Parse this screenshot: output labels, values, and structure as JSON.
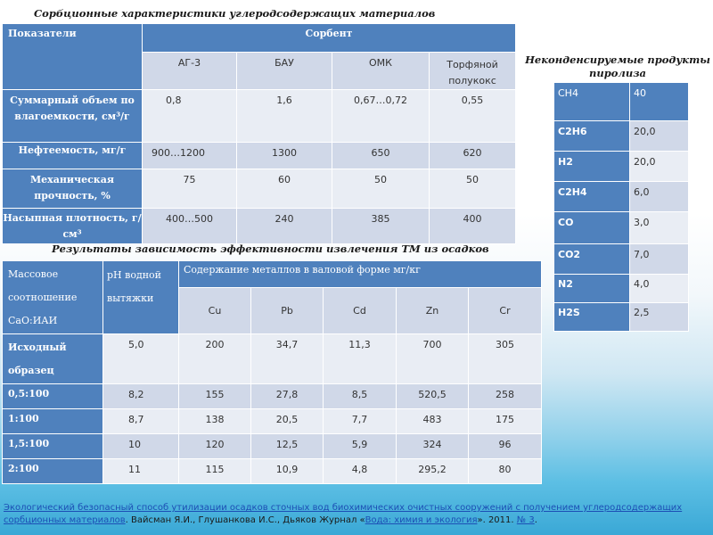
{
  "table1": {
    "title": "Сорбционные характеристики углеродсодержащих материалов",
    "header_param": "Показатели",
    "header_sorbent": "Сорбент",
    "sorbents": [
      "АГ-3",
      "БАУ",
      "ОМК",
      "Торфяной полукокс"
    ],
    "rows": [
      {
        "label": "Суммарный объем по влагоемкости, см³/г",
        "values": [
          "0,8",
          "1,6",
          "0,67…0,72",
          "0,55"
        ]
      },
      {
        "label": "Нефтеемость, мг/г",
        "values": [
          "900…1200",
          "1300",
          "650",
          "620"
        ]
      },
      {
        "label": "Механическая прочность, %",
        "values": [
          "75",
          "60",
          "50",
          "50"
        ]
      },
      {
        "label": "Насыпная плотность, г/см³",
        "values": [
          "400…500",
          "240",
          "385",
          "400"
        ]
      }
    ]
  },
  "table2": {
    "title": "Результаты зависимость эффективности извлечения ТМ из осадков",
    "header_ratio": "Массовое соотношение СаО:ИАИ",
    "header_ph": "рН водной вытяжки",
    "header_metals": "Содержание металлов в валовой форме мг/кг",
    "metals": [
      "Cu",
      "Pb",
      "Cd",
      "Zn",
      "Cr"
    ],
    "rows": [
      {
        "label": "Исходный образец",
        "ph": "5,0",
        "values": [
          "200",
          "34,7",
          "11,3",
          "700",
          "305"
        ]
      },
      {
        "label": "0,5:100",
        "ph": "8,2",
        "values": [
          "155",
          "27,8",
          "8,5",
          "520,5",
          "258"
        ]
      },
      {
        "label": "1:100",
        "ph": "8,7",
        "values": [
          "138",
          "20,5",
          "7,7",
          "483",
          "175"
        ]
      },
      {
        "label": "1,5:100",
        "ph": "10",
        "values": [
          "120",
          "12,5",
          "5,9",
          "324",
          "96"
        ]
      },
      {
        "label": "2:100",
        "ph": "11",
        "values": [
          "115",
          "10,9",
          "4,8",
          "295,2",
          "80"
        ]
      }
    ]
  },
  "table3": {
    "title": "Неконденсируемые продукты пиролиза",
    "rows": [
      {
        "gas": "CH4",
        "value": "40"
      },
      {
        "gas": "C2H6",
        "value": "20,0"
      },
      {
        "gas": "H2",
        "value": "20,0"
      },
      {
        "gas": "C2H4",
        "value": "6,0"
      },
      {
        "gas": "CO",
        "value": "3,0"
      },
      {
        "gas": "CO2",
        "value": "7,0"
      },
      {
        "gas": "N2",
        "value": "4,0"
      },
      {
        "gas": "H2S",
        "value": "2,5"
      }
    ]
  },
  "footer": {
    "link_text": "Экологический безопасный способ утилизации осадков сточных вод биохимических очистных сооружений с получением углеродсодержащих сорбционных материалов",
    "authors_text": ". Вайсман Я.И., Глушанкова И.С., Дьяков Журнал «",
    "journal_link": "Вода: химия и экология",
    "year_text": "». 2011. ",
    "issue_link": "№ 3",
    "end_text": "."
  }
}
